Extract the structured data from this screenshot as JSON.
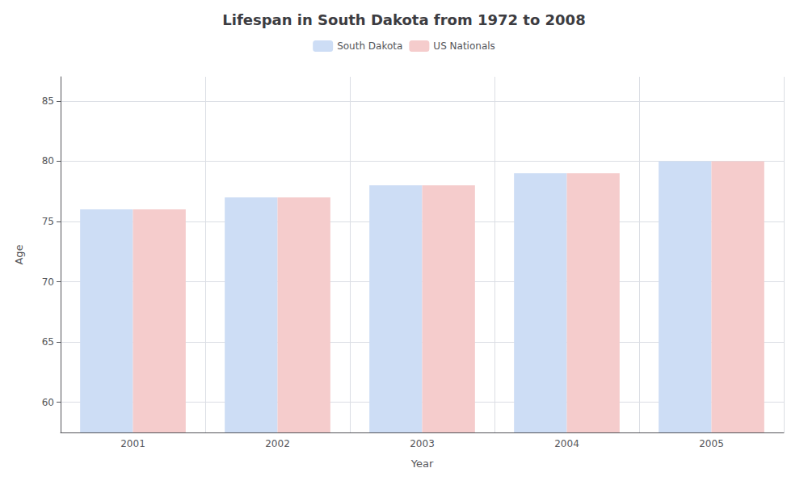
{
  "chart_data": {
    "type": "bar",
    "title": "Lifespan in South Dakota from 1972 to 2008",
    "x_label": "Year",
    "y_label": "Age",
    "categories": [
      "2001",
      "2002",
      "2003",
      "2004",
      "2005"
    ],
    "series": [
      {
        "name": "South Dakota",
        "color": "#cdddf5",
        "values": [
          76,
          77,
          78,
          79,
          80
        ]
      },
      {
        "name": "US Nationals",
        "color": "#f5cccc",
        "values": [
          76,
          77,
          78,
          79,
          80
        ]
      }
    ],
    "ylim": [
      57.5,
      87
    ],
    "yticks": [
      60,
      65,
      70,
      75,
      80,
      85
    ],
    "grid": true,
    "legend": "top"
  }
}
